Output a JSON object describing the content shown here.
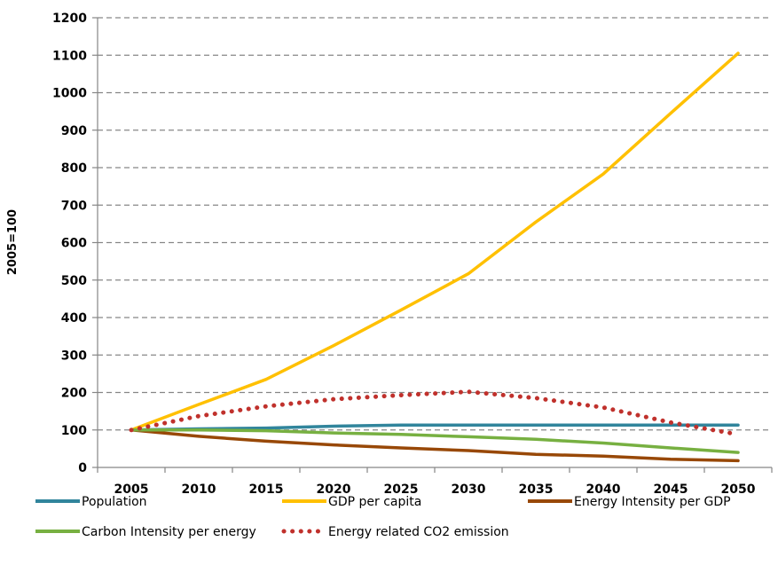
{
  "chart_data": {
    "type": "line",
    "title": "",
    "xlabel": "",
    "ylabel": "2005=100",
    "categories": [
      "2005",
      "2010",
      "2015",
      "2020",
      "2025",
      "2030",
      "2035",
      "2040",
      "2045",
      "2050"
    ],
    "ylim": [
      0,
      1200
    ],
    "yticks": [
      0,
      100,
      200,
      300,
      400,
      500,
      600,
      700,
      800,
      900,
      1000,
      1100,
      1200
    ],
    "grid": true,
    "legend_position": "bottom",
    "series": [
      {
        "name": "Population",
        "color": "#31859C",
        "style": "solid",
        "values": [
          100,
          103,
          105,
          110,
          113,
          113,
          113,
          113,
          113,
          113
        ]
      },
      {
        "name": "GDP per capita",
        "color": "#FFC000",
        "style": "solid",
        "values": [
          100,
          168,
          235,
          325,
          420,
          517,
          655,
          783,
          945,
          1105
        ]
      },
      {
        "name": "Energy Intensity per GDP",
        "color": "#984807",
        "style": "solid",
        "values": [
          100,
          83,
          70,
          60,
          52,
          45,
          35,
          30,
          22,
          18
        ]
      },
      {
        "name": "Carbon Intensity per energy",
        "color": "#77B041",
        "style": "solid",
        "values": [
          100,
          100,
          98,
          92,
          88,
          82,
          75,
          65,
          52,
          40
        ]
      },
      {
        "name": "Energy related CO2 emission",
        "color": "#C0312C",
        "style": "dotted",
        "values": [
          100,
          137,
          163,
          182,
          193,
          202,
          185,
          160,
          120,
          88
        ]
      }
    ]
  }
}
